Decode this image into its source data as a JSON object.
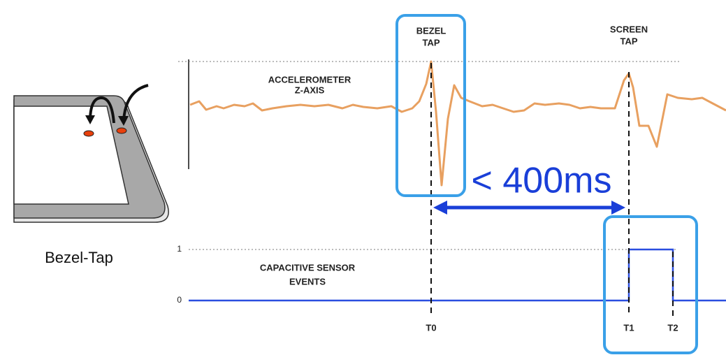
{
  "illustration": {
    "caption": "Bezel-Tap"
  },
  "diagram": {
    "bezel_tap_label": [
      "BEZEL",
      "TAP"
    ],
    "screen_tap_label": [
      "SCREEN",
      "TAP"
    ],
    "accelerometer_label": [
      "ACCELEROMETER",
      "Z-AXIS"
    ],
    "interval_label": "< 400ms",
    "capacitive_label": [
      "CAPACITIVE SENSOR",
      "EVENTS"
    ],
    "capacitive_levels": [
      "1",
      "0"
    ],
    "time_markers": [
      "T0",
      "T1",
      "T2"
    ]
  }
}
